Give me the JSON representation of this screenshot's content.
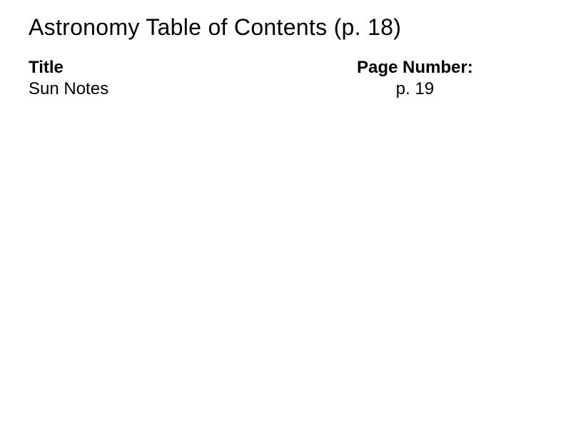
{
  "heading": "Astronomy Table of Contents (p. 18)",
  "table": {
    "left_header": "Title",
    "right_header": "Page Number:",
    "rows": [
      {
        "title": "Sun Notes",
        "page": "p. 19"
      }
    ]
  },
  "style": {
    "background_color": "#ffffff",
    "text_color": "#000000",
    "font_family": "Arial, Helvetica, sans-serif",
    "heading_fontsize": 32,
    "body_fontsize": 24
  }
}
